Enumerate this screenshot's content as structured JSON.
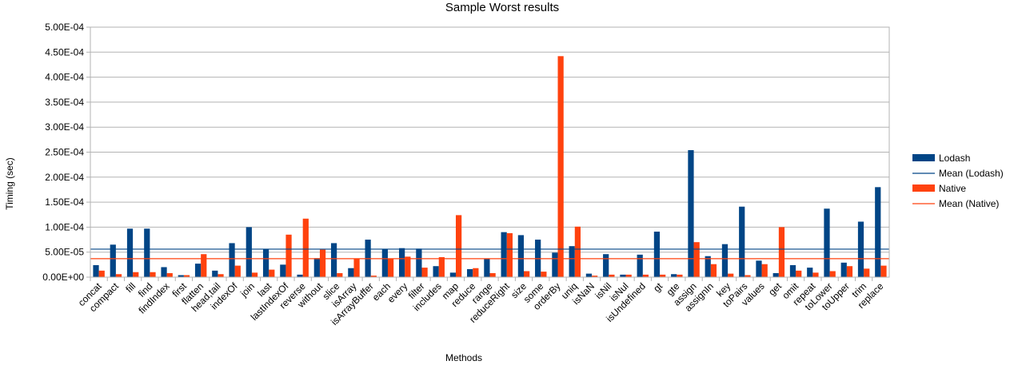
{
  "chart_data": {
    "type": "bar",
    "title": "Sample Worst results",
    "xlabel": "Methods",
    "ylabel": "Timing (sec)",
    "ylim": [
      0,
      0.0005
    ],
    "yticks": [
      0,
      5e-05,
      0.0001,
      0.00015,
      0.0002,
      0.00025,
      0.0003,
      0.00035,
      0.0004,
      0.00045,
      0.0005
    ],
    "ytick_labels": [
      "0.00E+00",
      "5.00E-05",
      "1.00E-04",
      "1.50E-04",
      "2.00E-04",
      "2.50E-04",
      "3.00E-04",
      "3.50E-04",
      "4.00E-04",
      "4.50E-04",
      "5.00E-04"
    ],
    "grid": true,
    "legend_position": "right",
    "categories": [
      "concat",
      "compact",
      "fill",
      "find",
      "findIndex",
      "first",
      "flatten",
      "head,tail",
      "indexOf",
      "join",
      "last",
      "lastIndexOf",
      "reverse",
      "without",
      "slice",
      "isArray",
      "isArrayBuffer",
      "each",
      "every",
      "filter",
      "includes",
      "map",
      "reduce",
      "range",
      "reduceRight",
      "size",
      "some",
      "orderBy",
      "uniq",
      "isNaN",
      "isNil",
      "isNul",
      "isUndefined",
      "gt",
      "gte",
      "assign",
      "assignIn",
      "key",
      "toPairs",
      "values",
      "get",
      "omit",
      "repeat",
      "toLower",
      "toUpper",
      "trim",
      "replace"
    ],
    "series": [
      {
        "name": "Lodash",
        "color": "#004586",
        "values": [
          2.4e-05,
          6.5e-05,
          9.7e-05,
          9.7e-05,
          2e-05,
          4e-06,
          2.7e-05,
          1.3e-05,
          6.8e-05,
          0.0001,
          5.6e-05,
          2.5e-05,
          5e-06,
          3.8e-05,
          6.8e-05,
          1.8e-05,
          7.5e-05,
          5.6e-05,
          5.8e-05,
          5.7e-05,
          2.2e-05,
          9e-06,
          1.6e-05,
          3.6e-05,
          9e-05,
          8.4e-05,
          7.5e-05,
          4.9e-05,
          6.2e-05,
          7e-06,
          4.6e-05,
          5e-06,
          4.5e-05,
          9.1e-05,
          6e-06,
          0.000254,
          4.2e-05,
          6.6e-05,
          0.000141,
          3.3e-05,
          8e-06,
          2.4e-05,
          1.9e-05,
          0.000137,
          2.9e-05,
          0.000111,
          0.00018
        ]
      },
      {
        "name": "Native",
        "color": "#ff420e",
        "values": [
          1.3e-05,
          6e-06,
          1e-05,
          1e-05,
          8e-06,
          4e-06,
          4.6e-05,
          6e-06,
          2.3e-05,
          9e-06,
          1.5e-05,
          8.5e-05,
          0.000117,
          5.5e-05,
          8e-06,
          3.7e-05,
          3e-06,
          3.6e-05,
          4.1e-05,
          1.9e-05,
          4e-05,
          0.000124,
          1.8e-05,
          8e-06,
          8.8e-05,
          1.2e-05,
          1.1e-05,
          0.000442,
          0.000101,
          3e-06,
          5e-06,
          5e-06,
          5e-06,
          5e-06,
          5e-06,
          7e-05,
          2.6e-05,
          7e-06,
          4e-06,
          2.6e-05,
          0.0001,
          1.3e-05,
          9e-06,
          1.2e-05,
          2.2e-05,
          1.7e-05,
          2.3e-05
        ]
      }
    ],
    "mean_lines": [
      {
        "name": "Mean (Lodash)",
        "color": "#004586",
        "value": 5.6e-05
      },
      {
        "name": "Mean (Native)",
        "color": "#ff420e",
        "value": 3.7e-05
      }
    ],
    "legend": [
      "Lodash",
      "Mean (Lodash)",
      "Native",
      "Mean (Native)"
    ]
  }
}
